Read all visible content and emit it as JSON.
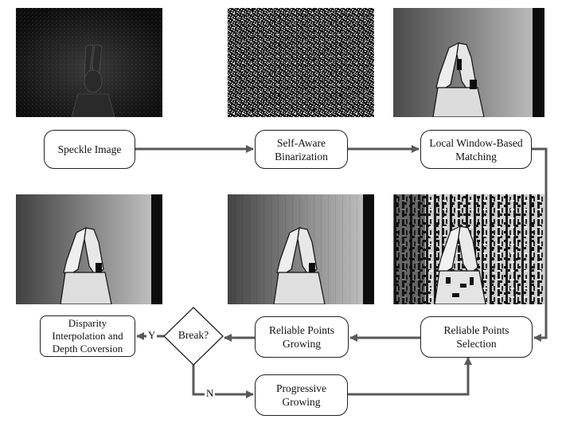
{
  "nodes": {
    "speckle": "Speckle Image",
    "binarization": "Self-Aware\nBinarization",
    "matching": "Local Window-Based\nMatching",
    "selection": "Reliable Points\nSelection",
    "growing": "Reliable Points\nGrowing",
    "decision": "Break?",
    "progressive": "Progressive\nGrowing",
    "interpolation": "Disparity\nInterpolation and\nDepth Coversion"
  },
  "edge_labels": {
    "yes": "Y",
    "no": "N"
  },
  "colors": {
    "arrow": "#595959",
    "border": "#222222",
    "panel_dark": "#0d0d0d",
    "panel_gray": "#9a9a9a"
  }
}
